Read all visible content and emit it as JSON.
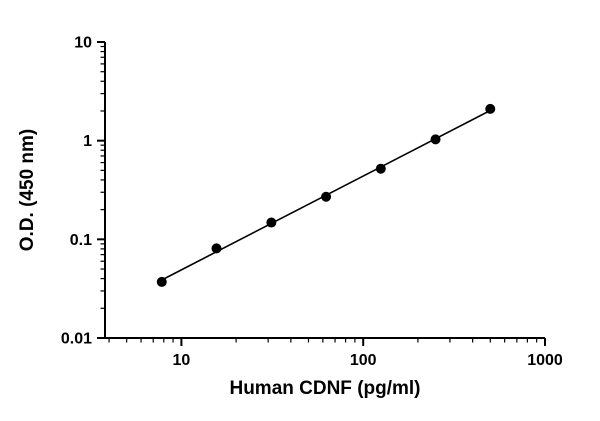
{
  "chart_data": {
    "type": "scatter",
    "title": "",
    "xlabel": "Human CDNF (pg/ml)",
    "ylabel": "O.D. (450 nm)",
    "x_scale": "log",
    "y_scale": "log",
    "xlim": [
      3.8,
      1000
    ],
    "ylim": [
      0.01,
      10
    ],
    "x_ticks": [
      10,
      100,
      1000
    ],
    "x_tick_labels": [
      "10",
      "100",
      "1000"
    ],
    "y_ticks": [
      0.01,
      0.1,
      1,
      10
    ],
    "y_tick_labels": [
      "0.01",
      "0.1",
      "1",
      "10"
    ],
    "grid": false,
    "legend": "none",
    "points": {
      "x": [
        7.8,
        15.6,
        31.25,
        62.5,
        125,
        250,
        500
      ],
      "y": [
        0.037,
        0.081,
        0.148,
        0.27,
        0.52,
        1.03,
        2.1
      ]
    },
    "fit_line": {
      "type": "linear-loglog",
      "color": "#000000",
      "width": 1.6
    },
    "marker": {
      "shape": "circle",
      "color": "#000000",
      "radius": 5
    },
    "axis_color": "#000000",
    "background": "#ffffff"
  }
}
